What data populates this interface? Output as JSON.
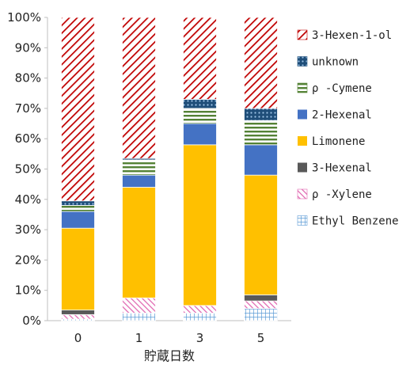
{
  "chart_data": {
    "type": "bar",
    "stacked": true,
    "percent": true,
    "categories": [
      "0",
      "1",
      "3",
      "5"
    ],
    "xlabel": "貯蔵日数",
    "ylabel": "",
    "ylim": [
      0,
      100
    ],
    "yticks": [
      "0%",
      "10%",
      "20%",
      "30%",
      "40%",
      "50%",
      "60%",
      "70%",
      "80%",
      "90%",
      "100%"
    ],
    "grid": false,
    "legend_position": "right",
    "series": [
      {
        "name": "Ethyl Benzene",
        "values": [
          0.5,
          2.5,
          2.5,
          4.0
        ],
        "color": "#5b9bd5",
        "pattern": "grid"
      },
      {
        "name": "ρ -Xylene",
        "values": [
          1.5,
          5.0,
          2.5,
          2.5
        ],
        "color": "#e066b0",
        "pattern": "diag-left"
      },
      {
        "name": "3-Hexenal",
        "values": [
          1.5,
          0.0,
          0.0,
          2.0
        ],
        "color": "#595959",
        "pattern": "solid"
      },
      {
        "name": "Limonene",
        "values": [
          27.0,
          36.5,
          53.0,
          39.5
        ],
        "color": "#ffc000",
        "pattern": "solid"
      },
      {
        "name": "2-Hexenal",
        "values": [
          5.5,
          4.0,
          7.0,
          10.0
        ],
        "color": "#4472c4",
        "pattern": "solid"
      },
      {
        "name": "ρ -Cymene",
        "values": [
          2.0,
          5.0,
          5.0,
          8.0
        ],
        "color": "#548235",
        "pattern": "hlines"
      },
      {
        "name": "unknown",
        "values": [
          1.5,
          0.5,
          3.0,
          4.0
        ],
        "color": "#1f4e79",
        "pattern": "dots"
      },
      {
        "name": "3-Hexen-1-ol",
        "values": [
          60.5,
          46.5,
          27.0,
          30.0
        ],
        "color": "#c00000",
        "pattern": "diag-right"
      }
    ]
  }
}
